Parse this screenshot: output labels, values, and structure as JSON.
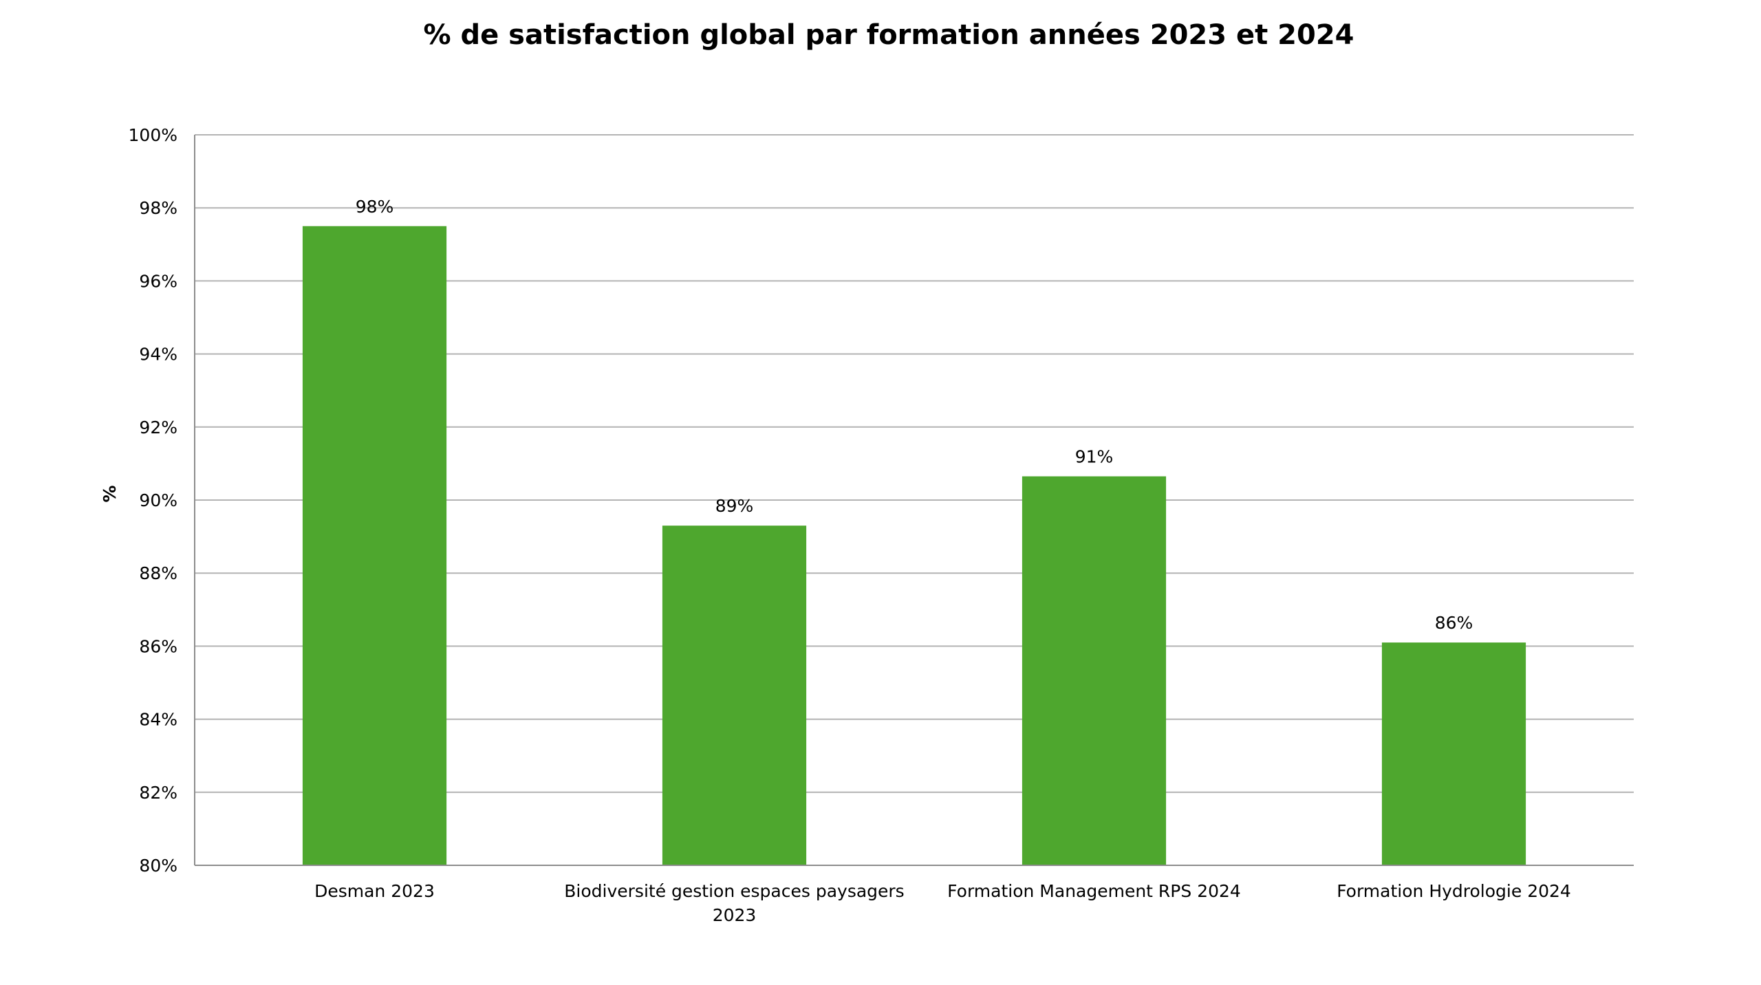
{
  "chart_data": {
    "type": "bar",
    "title": "% de satisfaction global par formation années 2023 et 2024",
    "ylabel": "%",
    "xlabel": "",
    "ylim": [
      80,
      100
    ],
    "y_tick_step": 2,
    "y_tick_suffix": "%",
    "grid": true,
    "legend": "none",
    "bar_color": "#4ea72e",
    "categories": [
      [
        "Desman 2023"
      ],
      [
        "Biodiversité gestion espaces paysagers",
        "2023"
      ],
      [
        "Formation Management RPS 2024"
      ],
      [
        "Formation Hydrologie 2024"
      ]
    ],
    "values": [
      97.5,
      89.3,
      90.65,
      86.1
    ],
    "data_labels": [
      "98%",
      "89%",
      "91%",
      "86%"
    ]
  }
}
